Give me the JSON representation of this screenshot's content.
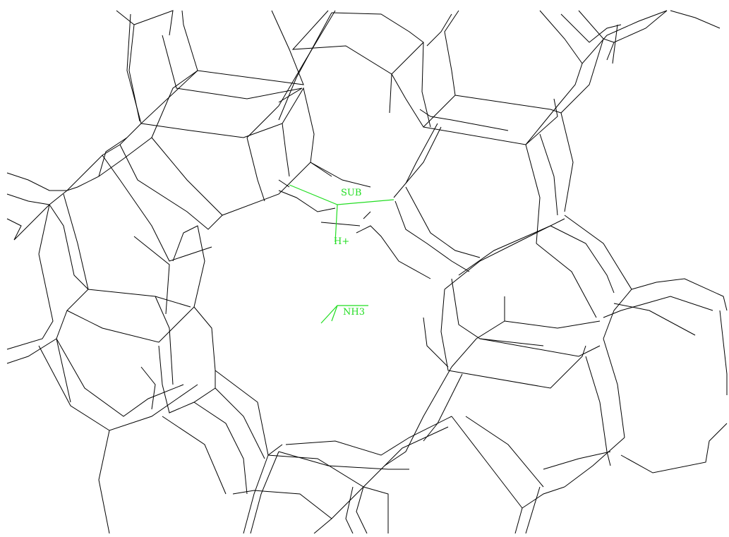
{
  "colors": {
    "background": "#ffffff",
    "framework": "#000000",
    "highlight": "#22dd22"
  },
  "labels": {
    "substrate": "SUB",
    "proton": "H+",
    "ammonia": "NH3"
  }
}
